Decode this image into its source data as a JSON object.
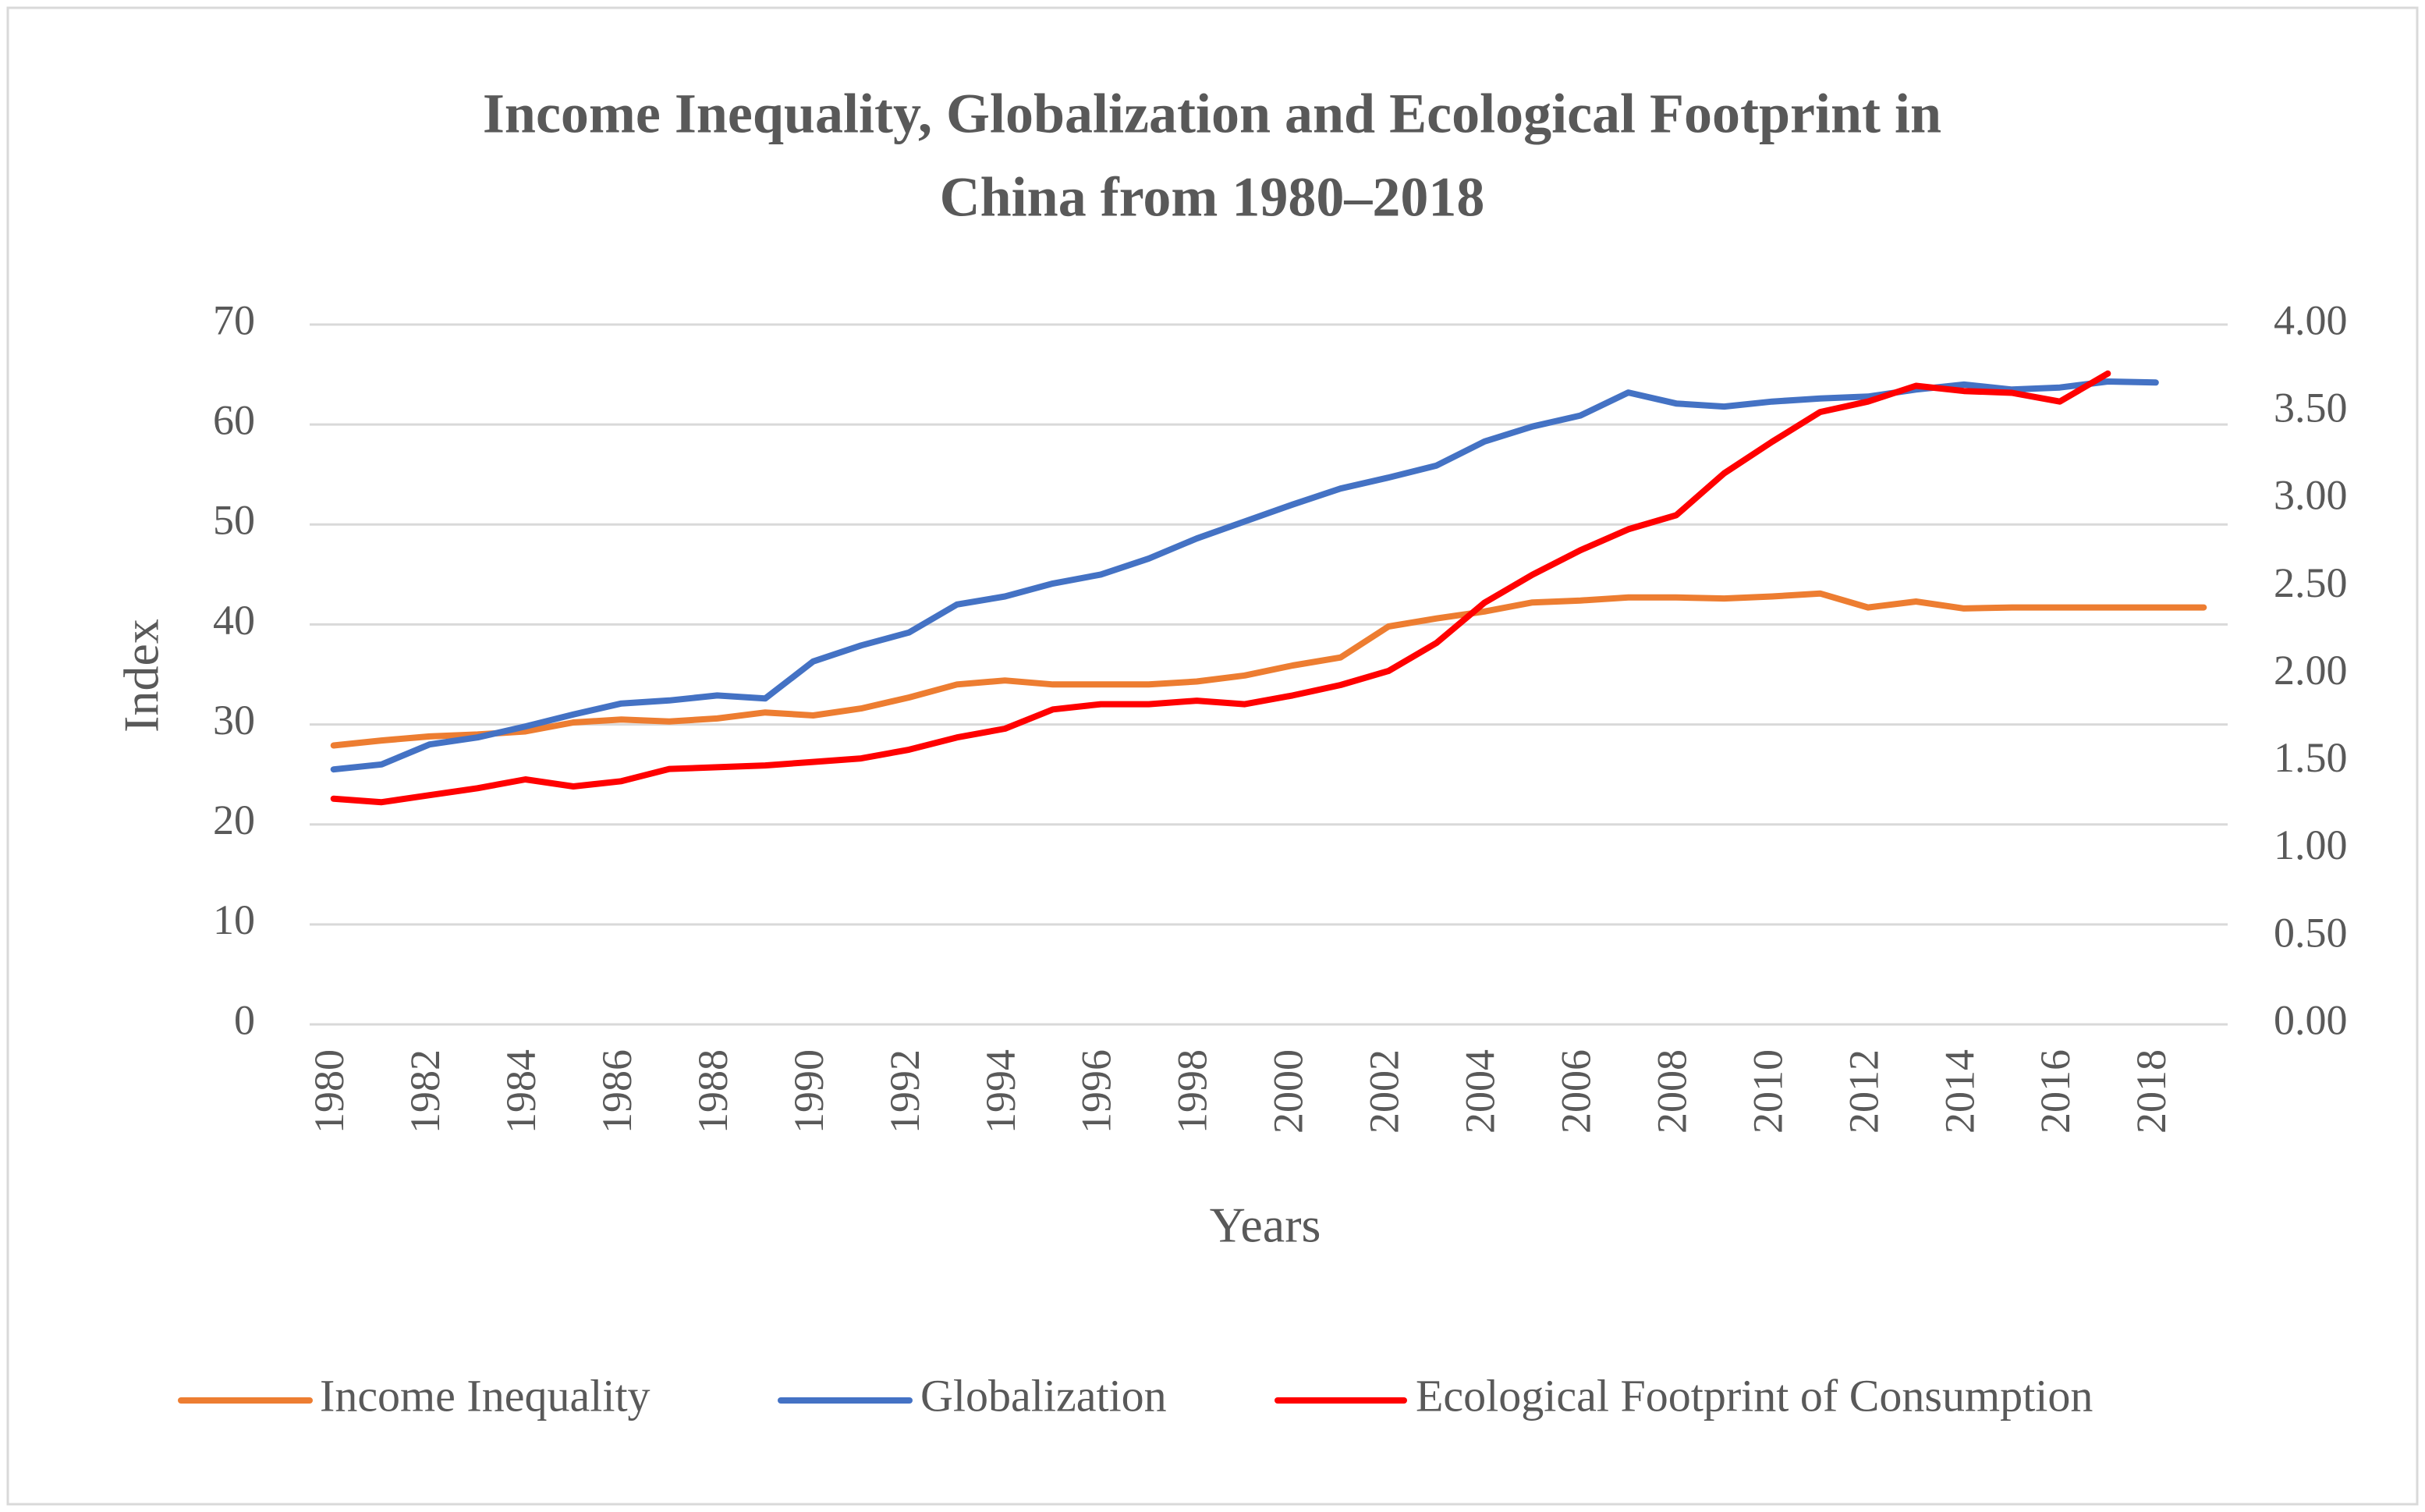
{
  "chart_data": {
    "type": "line",
    "title": [
      "Income Inequality, Globalization and Ecological Footprint in",
      "China from 1980–2018"
    ],
    "x_label": "Years",
    "y_label": "Index",
    "categories": [
      "1980",
      null,
      "1982",
      null,
      "1984",
      null,
      "1986",
      null,
      "1988",
      null,
      "1990",
      null,
      "1992",
      null,
      "1994",
      null,
      "1996",
      null,
      "1998",
      null,
      "2000",
      null,
      "2002",
      null,
      "2004",
      null,
      "2006",
      null,
      "2008",
      null,
      "2010",
      null,
      "2012",
      null,
      "2014",
      null,
      "2016",
      null,
      "2018",
      null
    ],
    "ylim": [
      0,
      70
    ],
    "yticks": [
      0,
      10,
      20,
      30,
      40,
      50,
      60,
      70
    ],
    "y2lim": [
      0,
      4
    ],
    "y2ticks": [
      {
        "value": 0,
        "label": "0.00"
      },
      {
        "value": 0.5,
        "label": "0.50"
      },
      {
        "value": 1,
        "label": "1.00"
      },
      {
        "value": 1.5,
        "label": "1.50"
      },
      {
        "value": 2,
        "label": "2.00"
      },
      {
        "value": 2.5,
        "label": "2.50"
      },
      {
        "value": 3,
        "label": "3.00"
      },
      {
        "value": 3.5,
        "label": "3.50"
      },
      {
        "value": 4,
        "label": "4.00"
      }
    ],
    "grid": true,
    "legend": "bottom",
    "series": [
      {
        "name": "Income Inequality",
        "color": "#ed7d31",
        "values": [
          27.9,
          28.4,
          28.8,
          29.0,
          29.3,
          30.2,
          30.5,
          30.3,
          30.6,
          31.2,
          30.9,
          31.6,
          32.7,
          34.0,
          34.4,
          34.0,
          34.0,
          34.0,
          34.3,
          34.9,
          35.9,
          36.7,
          39.8,
          40.6,
          41.3,
          42.2,
          42.4,
          42.7,
          42.7,
          42.6,
          42.8,
          43.1,
          41.7,
          42.3,
          41.6,
          41.7,
          41.7,
          41.7,
          41.7,
          41.7
        ]
      },
      {
        "name": "Globalization",
        "color": "#4472c4",
        "values": [
          25.5,
          26.0,
          28.0,
          28.7,
          29.8,
          31.0,
          32.1,
          32.4,
          32.9,
          32.6,
          36.3,
          37.9,
          39.2,
          42.0,
          42.8,
          44.1,
          45.0,
          46.6,
          48.6,
          50.3,
          52.0,
          53.6,
          54.7,
          55.9,
          58.3,
          59.8,
          60.9,
          63.2,
          62.1,
          61.8,
          62.3,
          62.6,
          62.8,
          63.5,
          64.0,
          63.5,
          63.7,
          64.3,
          64.2,
          null
        ]
      },
      {
        "name": "Ecological Footprint of Consumption",
        "color": "#ff0000",
        "axis": "y2",
        "values": [
          1.29,
          1.27,
          1.31,
          1.35,
          1.4,
          1.36,
          1.39,
          1.46,
          1.47,
          1.48,
          1.5,
          1.52,
          1.57,
          1.64,
          1.69,
          1.8,
          1.83,
          1.83,
          1.85,
          1.83,
          1.88,
          1.94,
          2.02,
          2.18,
          2.41,
          2.57,
          2.71,
          2.83,
          2.91,
          3.15,
          3.33,
          3.5,
          3.56,
          3.65,
          3.62,
          3.61,
          3.56,
          3.72,
          null,
          null
        ]
      }
    ]
  }
}
